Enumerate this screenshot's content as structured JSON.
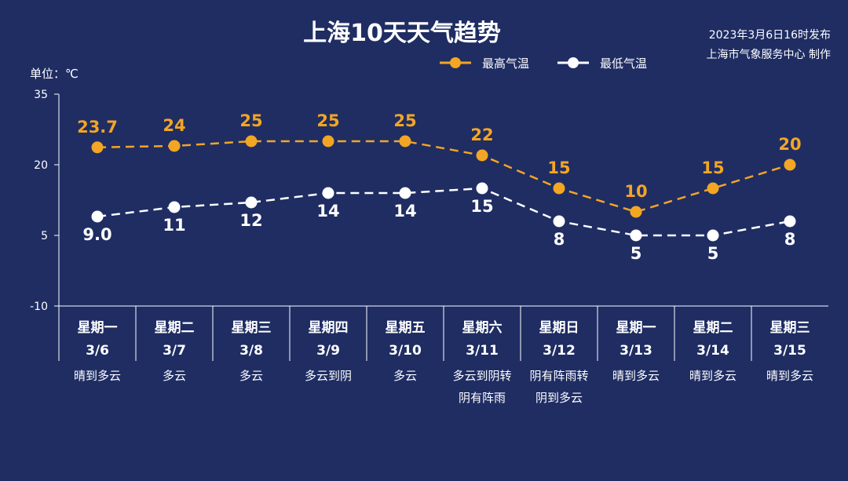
{
  "header": {
    "title": "上海10天天气趋势",
    "published": "2023年3月6日16时发布",
    "producer": "上海市气象服务中心 制作"
  },
  "colors": {
    "background": "#1f2d63",
    "high": "#f3a524",
    "low": "#ffffff"
  },
  "chart_data": {
    "type": "line",
    "unit_label": "单位：℃",
    "ylim": [
      -10,
      35
    ],
    "yticks": [
      35,
      20,
      5,
      -10
    ],
    "grid": false,
    "legend_position": "top-center",
    "categories": [
      {
        "day": "星期一",
        "date": "3/6",
        "weather": [
          "晴到多云"
        ]
      },
      {
        "day": "星期二",
        "date": "3/7",
        "weather": [
          "多云"
        ]
      },
      {
        "day": "星期三",
        "date": "3/8",
        "weather": [
          "多云"
        ]
      },
      {
        "day": "星期四",
        "date": "3/9",
        "weather": [
          "多云到阴"
        ]
      },
      {
        "day": "星期五",
        "date": "3/10",
        "weather": [
          "多云"
        ]
      },
      {
        "day": "星期六",
        "date": "3/11",
        "weather": [
          "多云到阴转",
          "阴有阵雨"
        ]
      },
      {
        "day": "星期日",
        "date": "3/12",
        "weather": [
          "阴有阵雨转",
          "阴到多云"
        ]
      },
      {
        "day": "星期一",
        "date": "3/13",
        "weather": [
          "晴到多云"
        ]
      },
      {
        "day": "星期二",
        "date": "3/14",
        "weather": [
          "晴到多云"
        ]
      },
      {
        "day": "星期三",
        "date": "3/15",
        "weather": [
          "晴到多云"
        ]
      }
    ],
    "series": [
      {
        "name": "最高气温",
        "values": [
          23.7,
          24,
          25,
          25,
          25,
          22,
          15,
          10,
          15,
          20
        ],
        "labels": [
          "23.7",
          "24",
          "25",
          "25",
          "25",
          "22",
          "15",
          "10",
          "15",
          "20"
        ]
      },
      {
        "name": "最低气温",
        "values": [
          9.0,
          11,
          12,
          14,
          14,
          15,
          8,
          5,
          5,
          8
        ],
        "labels": [
          "9.0",
          "11",
          "12",
          "14",
          "14",
          "15",
          "8",
          "5",
          "5",
          "8"
        ]
      }
    ]
  }
}
